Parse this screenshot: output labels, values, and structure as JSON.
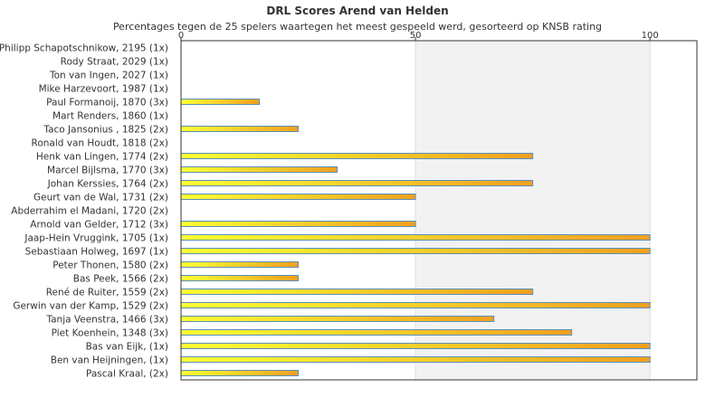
{
  "chart_data": {
    "type": "bar",
    "orientation": "horizontal",
    "title": "DRL Scores Arend van Helden",
    "subtitle": "Percentages tegen de 25 spelers waartegen het meest gespeeld werd, gesorteerd op KNSB rating",
    "xlim": [
      0,
      110
    ],
    "xticks": [
      "0",
      "50",
      "100"
    ],
    "tick_values": [
      0,
      50,
      100
    ],
    "grid": "alternating vertical bands",
    "legend": "none",
    "colors": {
      "bar_start": "#ffff33",
      "bar_end": "#f0a020",
      "bar_stroke": "#5b8fb9",
      "band": "#f2f2f2",
      "axis": "#333333"
    },
    "categories": [
      "Philipp Schapotschnikow, 2195 (1x)",
      "Rody Straat, 2029 (1x)",
      "Ton van Ingen, 2027 (1x)",
      "Mike Harzevoort, 1987 (1x)",
      "Paul Formanoij, 1870 (3x)",
      "Mart Renders, 1860 (1x)",
      "Taco Jansonius , 1825 (2x)",
      "Ronald van Houdt, 1818 (2x)",
      "Henk van Lingen, 1774 (2x)",
      "Marcel Bijlsma, 1770 (3x)",
      "Johan Kerssies, 1764 (2x)",
      "Geurt van de Wal, 1731 (2x)",
      "Abderrahim el Madani, 1720 (2x)",
      "Arnold van Gelder, 1712 (3x)",
      "Jaap-Hein Vruggink, 1705 (1x)",
      "Sebastiaan Holweg, 1697 (1x)",
      "Peter Thonen, 1580 (2x)",
      "Bas Peek, 1566 (2x)",
      "René de Ruiter, 1559 (2x)",
      "Gerwin van der Kamp, 1529 (2x)",
      "Tanja Veenstra, 1466 (3x)",
      "Piet Koenhein, 1348 (3x)",
      "Bas van Eijk,  (1x)",
      "Ben van Heijningen,  (1x)",
      "Pascal Kraal,  (2x)"
    ],
    "values": [
      0,
      0,
      0,
      0,
      16.7,
      0,
      25,
      0,
      75,
      33.3,
      75,
      50,
      0,
      50,
      100,
      100,
      25,
      25,
      75,
      100,
      66.7,
      83.3,
      100,
      100,
      25
    ]
  }
}
